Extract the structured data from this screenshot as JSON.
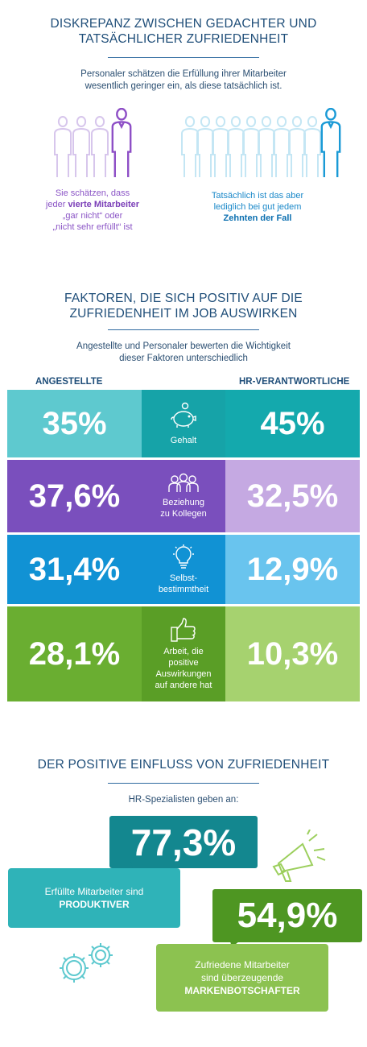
{
  "section1": {
    "title_line1": "DISKREPANZ ZWISCHEN GEDACHTER UND",
    "title_line2": "TATSÄCHLICHER ZUFRIEDENHEIT",
    "subtitle_line1": "Personaler schätzen die Erfüllung ihrer Mitarbeiter",
    "subtitle_line2": "wesentlich geringer ein, als diese tatsächlich ist.",
    "left_caption": {
      "l1": "Sie schätzen, dass",
      "l2_pre": "jeder ",
      "l2_bold": "vierte Mitarbeiter",
      "l3": "„gar nicht“ oder",
      "l4": "„nicht sehr erfüllt“ ist"
    },
    "right_caption": {
      "l1": "Tatsächlich ist das aber",
      "l2": "lediglich bei gut jedem",
      "l3_bold": "Zehnten der Fall"
    },
    "left_people_count": 4,
    "right_people_count": 10,
    "colors": {
      "purple": "#8e4fc6",
      "purple_light": "#d7c6ec",
      "blue": "#1a9ad6",
      "blue_light": "#c4e6f4"
    }
  },
  "section2": {
    "title_line1": "FAKTOREN, DIE SICH POSITIV AUF DIE",
    "title_line2": "ZUFRIEDENHEIT IM JOB AUSWIRKEN",
    "subtitle_line1": "Angestellte und Personaler bewerten die Wichtigkeit",
    "subtitle_line2": "dieser Faktoren unterschiedlich",
    "col_left": "ANGESTELLTE",
    "col_right": "HR-VERANTWORTLICHE",
    "rows": [
      {
        "left": "35%",
        "right": "45%",
        "label_lines": [
          "Gehalt"
        ],
        "icon": "piggy-bank-icon",
        "colors": {
          "left": "#5ec9cf",
          "mid": "#16a3a8",
          "right": "#14a9ad"
        }
      },
      {
        "left": "37,6%",
        "right": "32,5%",
        "label_lines": [
          "Beziehung",
          "zu Kollegen"
        ],
        "icon": "group-icon",
        "colors": {
          "left": "#7a4fbd",
          "mid": "#7a4fbd",
          "right": "#c5a9e2"
        }
      },
      {
        "left": "31,4%",
        "right": "12,9%",
        "label_lines": [
          "Selbst-",
          "bestimmtheit"
        ],
        "icon": "lightbulb-icon",
        "colors": {
          "left": "#1192d4",
          "mid": "#1192d4",
          "right": "#69c4ee"
        }
      },
      {
        "left": "28,1%",
        "right": "10,3%",
        "label_lines": [
          "Arbeit, die",
          "positive",
          "Auswirkungen",
          "auf andere hat"
        ],
        "icon": "thumbs-up-icon",
        "colors": {
          "left": "#6aae31",
          "mid": "#5a9e26",
          "right": "#a6d26f"
        }
      }
    ]
  },
  "section3": {
    "title": "DER POSITIVE EINFLUSS VON ZUFRIEDENHEIT",
    "subtitle": "HR-Spezialisten geben an:",
    "stat1": {
      "value": "77,3%",
      "line1": "Erfüllte Mitarbeiter sind",
      "line2_bold": "PRODUKTIVER"
    },
    "stat2": {
      "value": "54,9%",
      "line1": "Zufriedene Mitarbeiter",
      "line2": "sind überzeugende",
      "line3_bold": "MARKENBOTSCHAFTER"
    },
    "colors": {
      "teal_dark": "#13878f",
      "teal": "#2fb3b8",
      "green_dark": "#4e9622",
      "green": "#8cc250"
    }
  }
}
